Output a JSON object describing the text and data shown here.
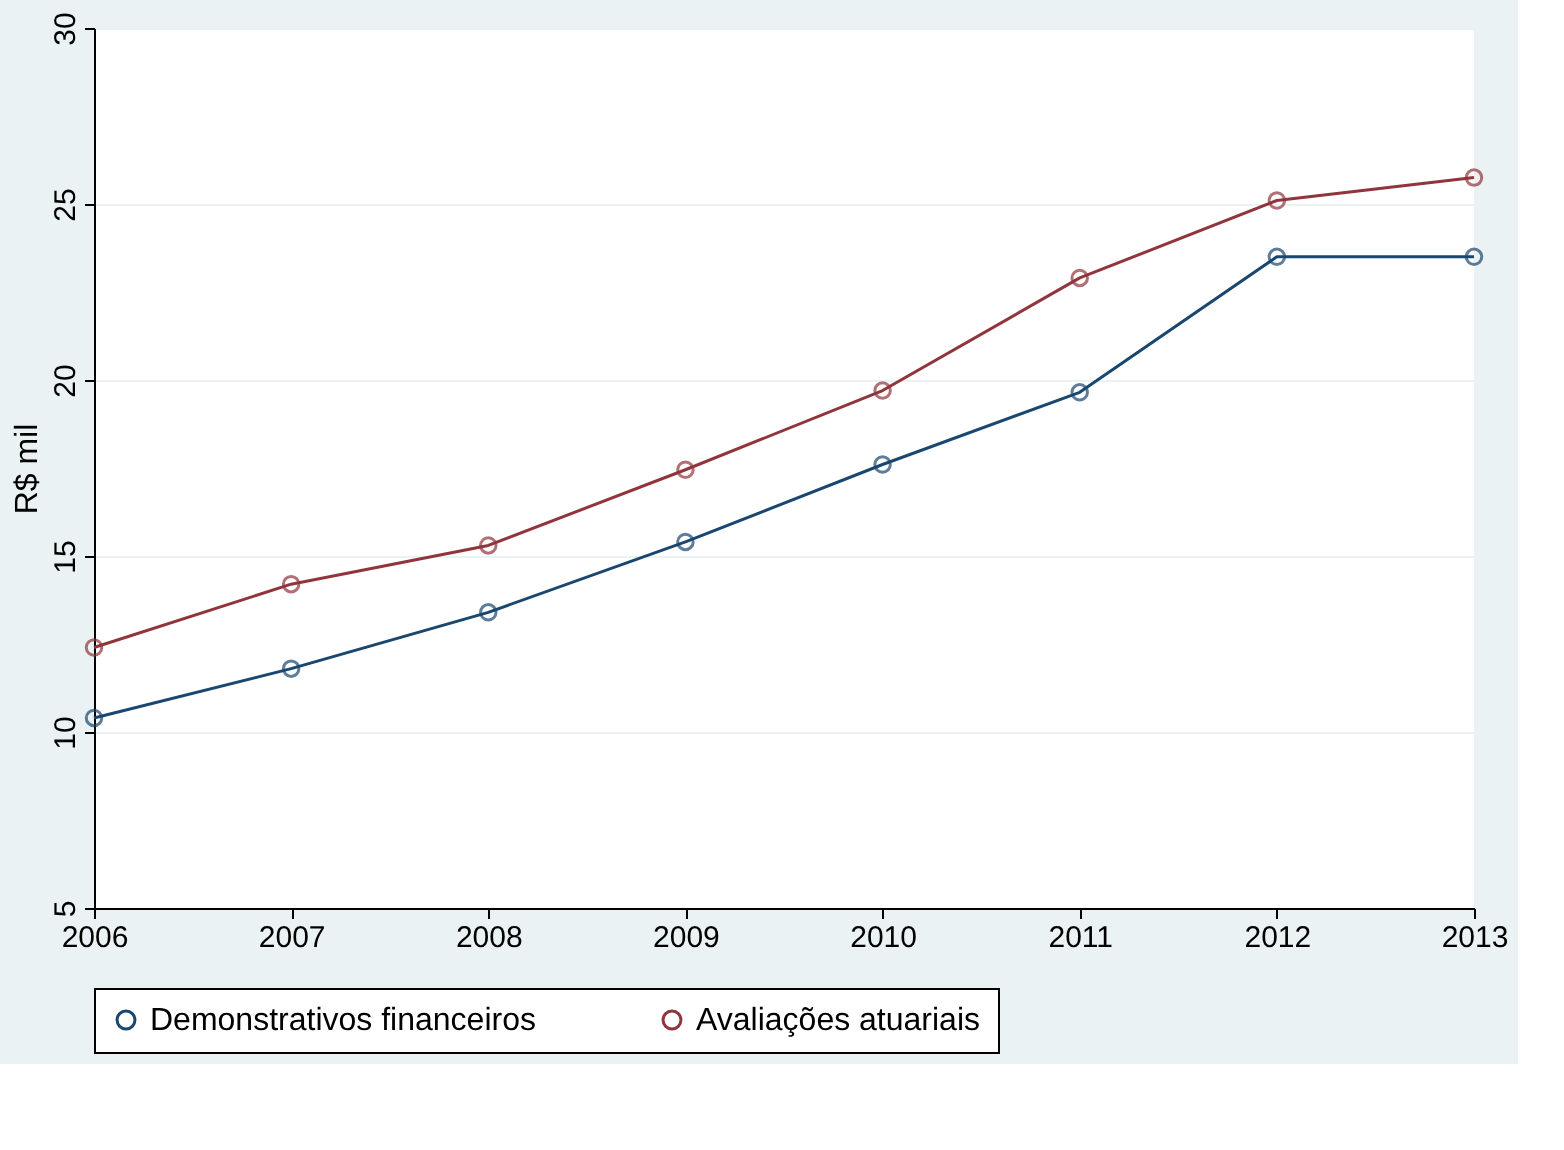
{
  "chart_data": {
    "type": "line",
    "ylabel": "R$ mil",
    "x": [
      2006,
      2007,
      2008,
      2009,
      2010,
      2011,
      2012,
      2013
    ],
    "series": [
      {
        "name": "Demonstrativos financeiros",
        "color": "#1a476f",
        "values": [
          10.4,
          11.8,
          13.4,
          15.4,
          17.6,
          19.65,
          23.5,
          23.5
        ]
      },
      {
        "name": "Avaliações atuariais",
        "color": "#90353b",
        "values": [
          12.4,
          14.2,
          15.3,
          17.45,
          19.7,
          22.9,
          25.1,
          25.75
        ]
      }
    ],
    "xlim": [
      2006,
      2013
    ],
    "xticks": [
      2006,
      2007,
      2008,
      2009,
      2010,
      2011,
      2012,
      2013
    ],
    "ylim": [
      5,
      30
    ],
    "yticks": [
      5,
      10,
      15,
      20,
      25,
      30
    ],
    "grid": "y",
    "legend": "bottom",
    "marker": "circle",
    "line_style": "solid"
  }
}
